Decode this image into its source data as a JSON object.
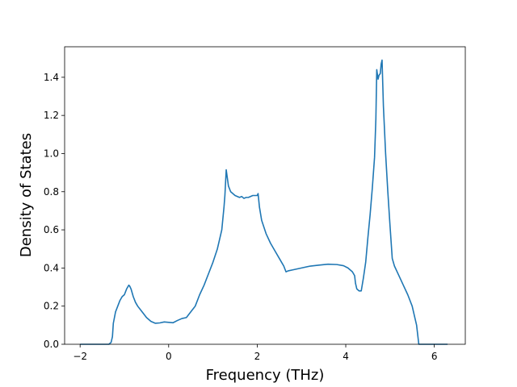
{
  "chart_data": {
    "type": "line",
    "title": "",
    "xlabel": "Frequency (THz)",
    "ylabel": "Density of States",
    "xlim": [
      -2.35,
      6.7
    ],
    "ylim": [
      0.0,
      1.56
    ],
    "xticks": [
      -2,
      0,
      2,
      4,
      6
    ],
    "xtick_labels": [
      "−2",
      "0",
      "2",
      "4",
      "6"
    ],
    "yticks": [
      0.0,
      0.2,
      0.4,
      0.6,
      0.8,
      1.0,
      1.2,
      1.4
    ],
    "ytick_labels": [
      "0.0",
      "0.2",
      "0.4",
      "0.6",
      "0.8",
      "1.0",
      "1.2",
      "1.4"
    ],
    "grid": false,
    "series": [
      {
        "color": "#1f77b4",
        "x": [
          -2.0,
          -1.35,
          -1.3,
          -1.27,
          -1.25,
          -1.2,
          -1.15,
          -1.1,
          -1.05,
          -1.0,
          -0.95,
          -0.9,
          -0.88,
          -0.85,
          -0.8,
          -0.75,
          -0.7,
          -0.6,
          -0.5,
          -0.4,
          -0.3,
          -0.2,
          -0.1,
          0.0,
          0.1,
          0.2,
          0.3,
          0.4,
          0.5,
          0.6,
          0.7,
          0.8,
          0.9,
          1.0,
          1.1,
          1.15,
          1.2,
          1.25,
          1.27,
          1.3,
          1.35,
          1.4,
          1.5,
          1.6,
          1.65,
          1.7,
          1.75,
          1.8,
          1.9,
          2.0,
          2.02,
          2.05,
          2.1,
          2.2,
          2.3,
          2.4,
          2.5,
          2.55,
          2.6,
          2.65,
          2.7,
          2.8,
          3.0,
          3.2,
          3.4,
          3.6,
          3.8,
          3.95,
          4.05,
          4.15,
          4.2,
          4.22,
          4.25,
          4.3,
          4.35,
          4.4,
          4.45,
          4.5,
          4.55,
          4.6,
          4.65,
          4.68,
          4.7,
          4.73,
          4.75,
          4.78,
          4.8,
          4.82,
          4.85,
          4.9,
          4.95,
          5.0,
          5.05,
          5.1,
          5.2,
          5.3,
          5.4,
          5.5,
          5.55,
          5.6,
          5.65,
          6.0,
          6.3
        ],
        "y": [
          0.0,
          0.0,
          0.01,
          0.04,
          0.11,
          0.17,
          0.2,
          0.23,
          0.25,
          0.26,
          0.29,
          0.31,
          0.305,
          0.29,
          0.25,
          0.22,
          0.2,
          0.17,
          0.14,
          0.12,
          0.11,
          0.112,
          0.117,
          0.115,
          0.113,
          0.125,
          0.135,
          0.14,
          0.17,
          0.2,
          0.26,
          0.31,
          0.37,
          0.43,
          0.5,
          0.55,
          0.6,
          0.72,
          0.78,
          0.915,
          0.83,
          0.8,
          0.78,
          0.77,
          0.775,
          0.765,
          0.77,
          0.77,
          0.78,
          0.78,
          0.79,
          0.72,
          0.65,
          0.58,
          0.53,
          0.49,
          0.45,
          0.43,
          0.41,
          0.38,
          0.385,
          0.39,
          0.4,
          0.41,
          0.415,
          0.42,
          0.418,
          0.412,
          0.4,
          0.38,
          0.36,
          0.32,
          0.29,
          0.28,
          0.28,
          0.35,
          0.43,
          0.56,
          0.68,
          0.82,
          0.98,
          1.18,
          1.44,
          1.39,
          1.41,
          1.42,
          1.47,
          1.49,
          1.25,
          1.0,
          0.8,
          0.62,
          0.45,
          0.41,
          0.36,
          0.31,
          0.26,
          0.2,
          0.15,
          0.1,
          0.0,
          0.0,
          0.0
        ]
      }
    ]
  }
}
